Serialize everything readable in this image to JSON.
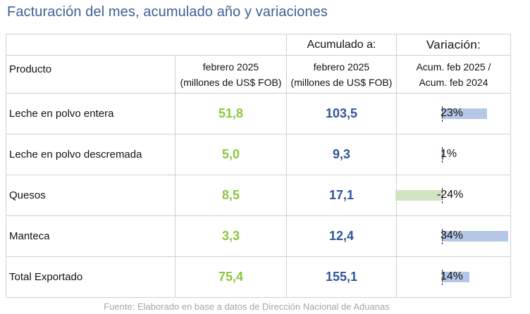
{
  "title": "Facturación del mes, acumulado año y variaciones",
  "headers": {
    "producto": "Producto",
    "mes_line1": "febrero 2025",
    "mes_line2": "(millones de US$ FOB)",
    "acum_top": "Acumulado a:",
    "acum_line1": "febrero 2025",
    "acum_line2": "(millones de US$ FOB)",
    "var_top": "Variación:",
    "var_line1": "Acum. feb 2025 /",
    "var_line2": "Acum. feb 2024"
  },
  "rows": [
    {
      "producto": "Leche en polvo entera",
      "mes": "51,8",
      "acumulado": "103,5",
      "variacion": "23%",
      "variacion_pct": 23
    },
    {
      "producto": "Leche en polvo descremada",
      "mes": "5,0",
      "acumulado": "9,3",
      "variacion": "1%",
      "variacion_pct": 1
    },
    {
      "producto": "Quesos",
      "mes": "8,5",
      "acumulado": "17,1",
      "variacion": "-24%",
      "variacion_pct": -24
    },
    {
      "producto": "Manteca",
      "mes": "3,3",
      "acumulado": "12,4",
      "variacion": "34%",
      "variacion_pct": 34
    },
    {
      "producto": "Total Exportado",
      "mes": "75,4",
      "acumulado": "155,1",
      "variacion": "14%",
      "variacion_pct": 14
    }
  ],
  "colors": {
    "mes": "#8cc63f",
    "acumulado": "#2f5597",
    "bar_positive": "#b4c7e7",
    "bar_negative": "#d3e4c0"
  },
  "footer": "Fuente: Elaborado en base a datos de Dirección Nacional de Aduanas"
}
